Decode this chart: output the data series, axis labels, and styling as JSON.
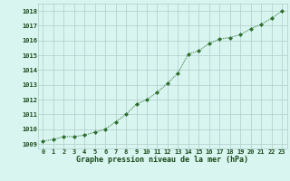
{
  "x": [
    0,
    1,
    2,
    3,
    4,
    5,
    6,
    7,
    8,
    9,
    10,
    11,
    12,
    13,
    14,
    15,
    16,
    17,
    18,
    19,
    20,
    21,
    22,
    23
  ],
  "y": [
    1009.2,
    1009.3,
    1009.5,
    1009.5,
    1009.6,
    1009.8,
    1010.0,
    1010.5,
    1011.0,
    1011.7,
    1012.0,
    1012.5,
    1013.1,
    1013.8,
    1015.1,
    1015.3,
    1015.8,
    1016.1,
    1016.2,
    1016.4,
    1016.8,
    1017.1,
    1017.5,
    1018.0
  ],
  "line_color": "#2d6e2d",
  "marker": "D",
  "bg_color": "#d8f5f0",
  "grid_color": "#b0cccc",
  "xlabel": "Graphe pression niveau de la mer (hPa)",
  "xlabel_fontsize": 6.0,
  "ylabel_ticks": [
    1009,
    1010,
    1011,
    1012,
    1013,
    1014,
    1015,
    1016,
    1017,
    1018
  ],
  "xlim": [
    -0.5,
    23.5
  ],
  "ylim": [
    1008.7,
    1018.5
  ],
  "tick_fontsize": 5.0,
  "label_color": "#1a4a1a"
}
